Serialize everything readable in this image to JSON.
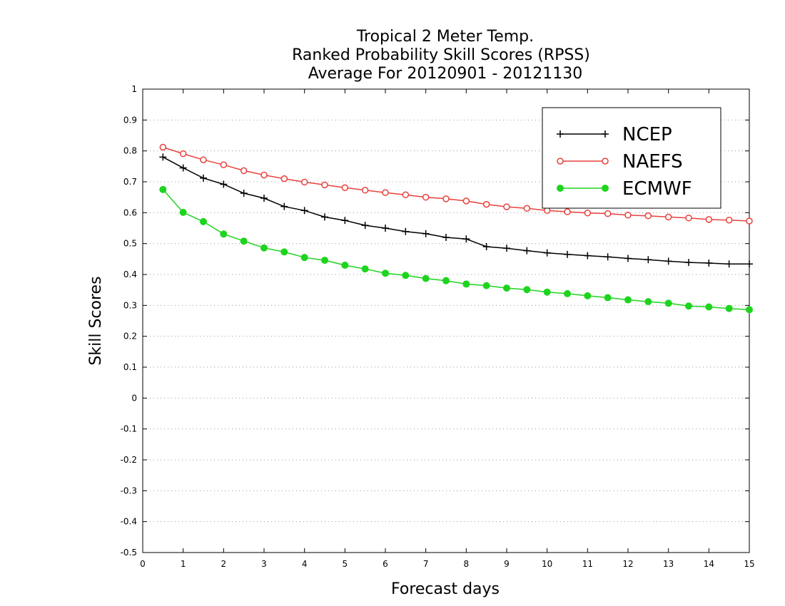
{
  "chart_data": {
    "type": "line",
    "title": [
      "Tropical 2 Meter Temp.",
      "Ranked Probability Skill Scores (RPSS)",
      "Average For 20120901 - 20121130"
    ],
    "xlabel": "Forecast days",
    "ylabel": "Skill Scores",
    "xlim": [
      0,
      15
    ],
    "ylim": [
      -0.5,
      1
    ],
    "xticks": [
      "0",
      "1",
      "2",
      "3",
      "4",
      "5",
      "6",
      "7",
      "8",
      "9",
      "10",
      "11",
      "12",
      "13",
      "14",
      "15"
    ],
    "yticks": [
      "1",
      "0.9",
      "0.8",
      "0.7",
      "0.6",
      "0.5",
      "0.4",
      "0.3",
      "0.2",
      "0.1",
      "0",
      "-0.1",
      "-0.2",
      "-0.3",
      "-0.4",
      "-0.5"
    ],
    "grid": true,
    "legend_position": "top-right",
    "x": [
      0.5,
      1,
      1.5,
      2,
      2.5,
      3,
      3.5,
      4,
      4.5,
      5,
      5.5,
      6,
      6.5,
      7,
      7.5,
      8,
      8.5,
      9,
      9.5,
      10,
      10.5,
      11,
      11.5,
      12,
      12.5,
      13,
      13.5,
      14,
      14.5,
      15
    ],
    "series": [
      {
        "name": "NCEP",
        "color": "#000000",
        "marker": "plus",
        "values": [
          0.78,
          0.745,
          0.712,
          0.692,
          0.663,
          0.647,
          0.62,
          0.607,
          0.586,
          0.575,
          0.559,
          0.55,
          0.539,
          0.532,
          0.52,
          0.515,
          0.49,
          0.485,
          0.477,
          0.47,
          0.465,
          0.461,
          0.457,
          0.452,
          0.448,
          0.443,
          0.439,
          0.437,
          0.434,
          0.434
        ]
      },
      {
        "name": "NAEFS",
        "color": "#e8413c",
        "marker": "open-circle",
        "values": [
          0.812,
          0.791,
          0.771,
          0.755,
          0.736,
          0.722,
          0.71,
          0.699,
          0.69,
          0.681,
          0.673,
          0.665,
          0.658,
          0.65,
          0.645,
          0.638,
          0.627,
          0.619,
          0.614,
          0.607,
          0.603,
          0.599,
          0.597,
          0.592,
          0.59,
          0.586,
          0.583,
          0.578,
          0.576,
          0.573
        ]
      },
      {
        "name": "ECMWF",
        "color": "#1ed41e",
        "marker": "filled-circle",
        "values": [
          0.675,
          0.601,
          0.571,
          0.531,
          0.508,
          0.486,
          0.473,
          0.455,
          0.446,
          0.43,
          0.418,
          0.404,
          0.397,
          0.387,
          0.38,
          0.369,
          0.364,
          0.356,
          0.351,
          0.343,
          0.338,
          0.331,
          0.325,
          0.318,
          0.312,
          0.307,
          0.298,
          0.295,
          0.29,
          0.286
        ]
      }
    ]
  }
}
